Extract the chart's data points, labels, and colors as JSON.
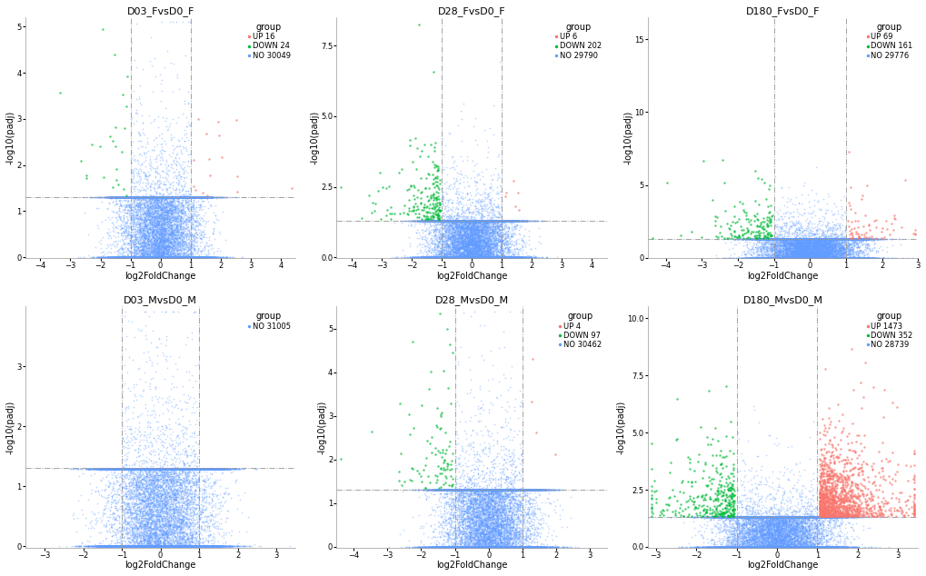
{
  "plots": [
    {
      "title": "D03_FvsD0_F",
      "up_count": 16,
      "down_count": 24,
      "no_count": 30049,
      "xlim": [
        -4.5,
        4.5
      ],
      "ylim_max": 5.2,
      "y_ticks": [
        0,
        1,
        2,
        3,
        4,
        5
      ],
      "padj_threshold": 1.3,
      "fc_threshold": 1.0,
      "seed": 42,
      "row": 0,
      "col": 0,
      "legend_loc": "upper right",
      "legend_inside": true
    },
    {
      "title": "D28_FvsD0_F",
      "up_count": 6,
      "down_count": 202,
      "no_count": 29790,
      "xlim": [
        -4.5,
        4.5
      ],
      "ylim_max": 8.5,
      "y_ticks": [
        0.0,
        2.5,
        5.0,
        7.5
      ],
      "padj_threshold": 1.3,
      "fc_threshold": 1.0,
      "seed": 123,
      "row": 0,
      "col": 1,
      "legend_loc": "upper right",
      "legend_inside": true
    },
    {
      "title": "D180_FvsD0_F",
      "up_count": 69,
      "down_count": 161,
      "no_count": 29776,
      "xlim": [
        -4.5,
        3.0
      ],
      "ylim_max": 16.5,
      "y_ticks": [
        0,
        5,
        10,
        15
      ],
      "padj_threshold": 1.3,
      "fc_threshold": 1.0,
      "seed": 77,
      "row": 0,
      "col": 2,
      "legend_loc": "upper right",
      "legend_inside": true
    },
    {
      "title": "D03_MvsD0_M",
      "up_count": 0,
      "down_count": 0,
      "no_count": 31005,
      "xlim": [
        -3.5,
        3.5
      ],
      "ylim_max": 4.0,
      "y_ticks": [
        0,
        1,
        2,
        3
      ],
      "padj_threshold": 1.3,
      "fc_threshold": 1.0,
      "seed": 55,
      "row": 1,
      "col": 0,
      "legend_loc": "upper right",
      "legend_inside": true
    },
    {
      "title": "D28_MvsD0_M",
      "up_count": 4,
      "down_count": 97,
      "no_count": 30462,
      "xlim": [
        -4.5,
        3.5
      ],
      "ylim_max": 5.5,
      "y_ticks": [
        0,
        1,
        2,
        3,
        4,
        5
      ],
      "padj_threshold": 1.3,
      "fc_threshold": 1.0,
      "seed": 99,
      "row": 1,
      "col": 1,
      "legend_loc": "upper right",
      "legend_inside": true
    },
    {
      "title": "D180_MvsD0_M",
      "up_count": 1473,
      "down_count": 352,
      "no_count": 28739,
      "xlim": [
        -3.2,
        3.5
      ],
      "ylim_max": 10.5,
      "y_ticks": [
        0.0,
        2.5,
        5.0,
        7.5,
        10.0
      ],
      "padj_threshold": 1.3,
      "fc_threshold": 1.0,
      "seed": 11,
      "row": 1,
      "col": 2,
      "legend_loc": "upper right",
      "legend_inside": true
    }
  ],
  "color_up": "#F8766D",
  "color_down": "#00BA38",
  "color_no": "#619CFF",
  "point_size": 1.5,
  "alpha_no": 0.4,
  "alpha_colored": 0.7,
  "background": "#ffffff",
  "title_fontsize": 8,
  "label_fontsize": 7,
  "tick_fontsize": 6,
  "legend_fontsize": 6,
  "legend_title_fontsize": 7
}
